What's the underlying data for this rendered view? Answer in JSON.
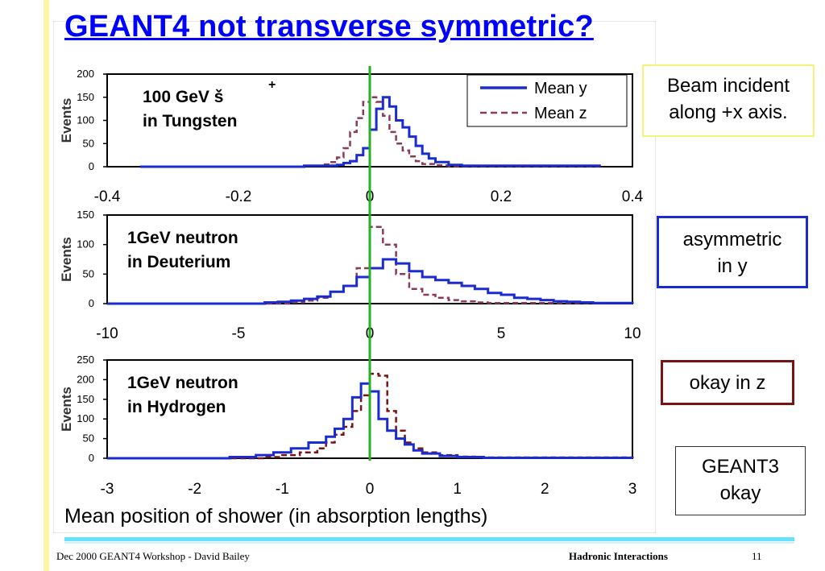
{
  "slide": {
    "title": "GEANT4 not transverse symmetric?",
    "callouts": [
      {
        "lines": [
          "Beam incident",
          "along +x axis."
        ]
      },
      {
        "lines": [
          "asymmetric",
          "in  y"
        ]
      },
      {
        "lines": [
          "okay in  z"
        ]
      },
      {
        "lines": [
          "GEANT3",
          "okay"
        ]
      }
    ],
    "footer": {
      "left": "Dec 2000 GEANT4  Workshop  -  David Bailey",
      "center": "Hadronic Interactions",
      "page": "11"
    }
  },
  "colors": {
    "title": "#0000ff",
    "mean_y": "#1a2bd0",
    "mean_z": "#8c3a5c",
    "hydrogen_z": "#7a1414",
    "zero_line": "#22b222"
  },
  "chart_data": [
    {
      "type": "line",
      "step": true,
      "annotation_lines": [
        "100 GeV š",
        "in Tungsten"
      ],
      "annotation_sup": "+",
      "ylabel": "Events",
      "xlim": [
        -0.4,
        0.4
      ],
      "ylim": [
        0,
        200
      ],
      "yticks": [
        "0",
        "50",
        "100",
        "150",
        "200"
      ],
      "xticks": [
        "-0.4",
        "-0.2",
        "0",
        "0.2",
        "0.4"
      ],
      "legend": {
        "placement": "top-right",
        "entries": [
          "Mean y",
          "Mean z"
        ]
      },
      "series": [
        {
          "name": "Mean y",
          "x": [
            -0.35,
            -0.1,
            -0.05,
            -0.04,
            -0.03,
            -0.02,
            -0.01,
            0,
            0.01,
            0.02,
            0.03,
            0.04,
            0.05,
            0.06,
            0.07,
            0.08,
            0.09,
            0.1,
            0.12,
            0.14,
            0.35
          ],
          "values": [
            0,
            2,
            4,
            8,
            12,
            25,
            40,
            80,
            125,
            150,
            130,
            100,
            85,
            65,
            45,
            28,
            18,
            10,
            4,
            2,
            0
          ]
        },
        {
          "name": "Mean z",
          "x": [
            -0.35,
            -0.1,
            -0.07,
            -0.06,
            -0.05,
            -0.04,
            -0.03,
            -0.02,
            -0.01,
            0,
            0.01,
            0.02,
            0.03,
            0.04,
            0.05,
            0.06,
            0.07,
            0.08,
            0.1,
            0.12,
            0.35
          ],
          "values": [
            0,
            2,
            5,
            10,
            20,
            40,
            75,
            105,
            140,
            150,
            140,
            110,
            75,
            50,
            35,
            22,
            12,
            6,
            3,
            1,
            0
          ]
        }
      ]
    },
    {
      "type": "line",
      "step": true,
      "annotation_lines": [
        "1GeV neutron",
        "in Deuterium"
      ],
      "ylabel": "Events",
      "xlim": [
        -10,
        10
      ],
      "ylim": [
        0,
        150
      ],
      "yticks": [
        "0",
        "50",
        "100",
        "150"
      ],
      "xticks": [
        "-10",
        "-5",
        "0",
        "5",
        "10"
      ],
      "series": [
        {
          "name": "Mean y",
          "x": [
            -10,
            -4,
            -3.5,
            -3,
            -2.5,
            -2,
            -1.5,
            -1,
            -0.5,
            0,
            0.5,
            1,
            1.5,
            2,
            2.5,
            3,
            3.5,
            4,
            4.5,
            5,
            5.5,
            6,
            6.5,
            7,
            7.5,
            8,
            8.5,
            9,
            10
          ],
          "values": [
            0,
            2,
            3,
            5,
            8,
            12,
            20,
            30,
            45,
            60,
            75,
            68,
            55,
            45,
            40,
            35,
            30,
            25,
            18,
            15,
            10,
            8,
            6,
            4,
            3,
            2,
            1,
            1,
            0
          ]
        },
        {
          "name": "Mean z",
          "x": [
            -10,
            -3,
            -2.5,
            -2,
            -1.5,
            -1,
            -0.5,
            0,
            0.5,
            1,
            1.5,
            2,
            2.5,
            3,
            3.5,
            4,
            4.5,
            10
          ],
          "values": [
            0,
            2,
            5,
            10,
            20,
            30,
            60,
            130,
            100,
            50,
            25,
            15,
            10,
            6,
            4,
            2,
            1,
            0
          ]
        }
      ]
    },
    {
      "type": "line",
      "step": true,
      "annotation_lines": [
        "1GeV neutron",
        "in Hydrogen"
      ],
      "ylabel": "Events",
      "xlim": [
        -3,
        3
      ],
      "ylim": [
        0,
        250
      ],
      "yticks": [
        "0",
        "50",
        "100",
        "150",
        "200",
        "250"
      ],
      "xticks": [
        "-3",
        "-2",
        "-1",
        "0",
        "1",
        "2",
        "3"
      ],
      "xlabel": "Mean position of shower (in absorption lengths)",
      "series": [
        {
          "name": "Mean y",
          "x": [
            -3,
            -1.6,
            -1.3,
            -1.1,
            -0.9,
            -0.7,
            -0.5,
            -0.4,
            -0.3,
            -0.2,
            -0.1,
            0,
            0.1,
            0.2,
            0.3,
            0.4,
            0.5,
            0.6,
            0.8,
            1.0,
            1.3,
            3
          ],
          "values": [
            0,
            3,
            8,
            15,
            25,
            40,
            55,
            75,
            100,
            155,
            190,
            170,
            100,
            70,
            50,
            35,
            20,
            12,
            6,
            3,
            1,
            0
          ]
        },
        {
          "name": "Mean z",
          "x": [
            -3,
            -1.2,
            -1,
            -0.8,
            -0.6,
            -0.5,
            -0.4,
            -0.3,
            -0.2,
            -0.1,
            0,
            0.1,
            0.2,
            0.3,
            0.4,
            0.5,
            0.6,
            0.8,
            1.0,
            1.2,
            3
          ],
          "values": [
            0,
            3,
            8,
            15,
            25,
            40,
            60,
            80,
            120,
            160,
            215,
            210,
            120,
            70,
            40,
            25,
            15,
            8,
            4,
            2,
            0
          ]
        }
      ]
    }
  ]
}
